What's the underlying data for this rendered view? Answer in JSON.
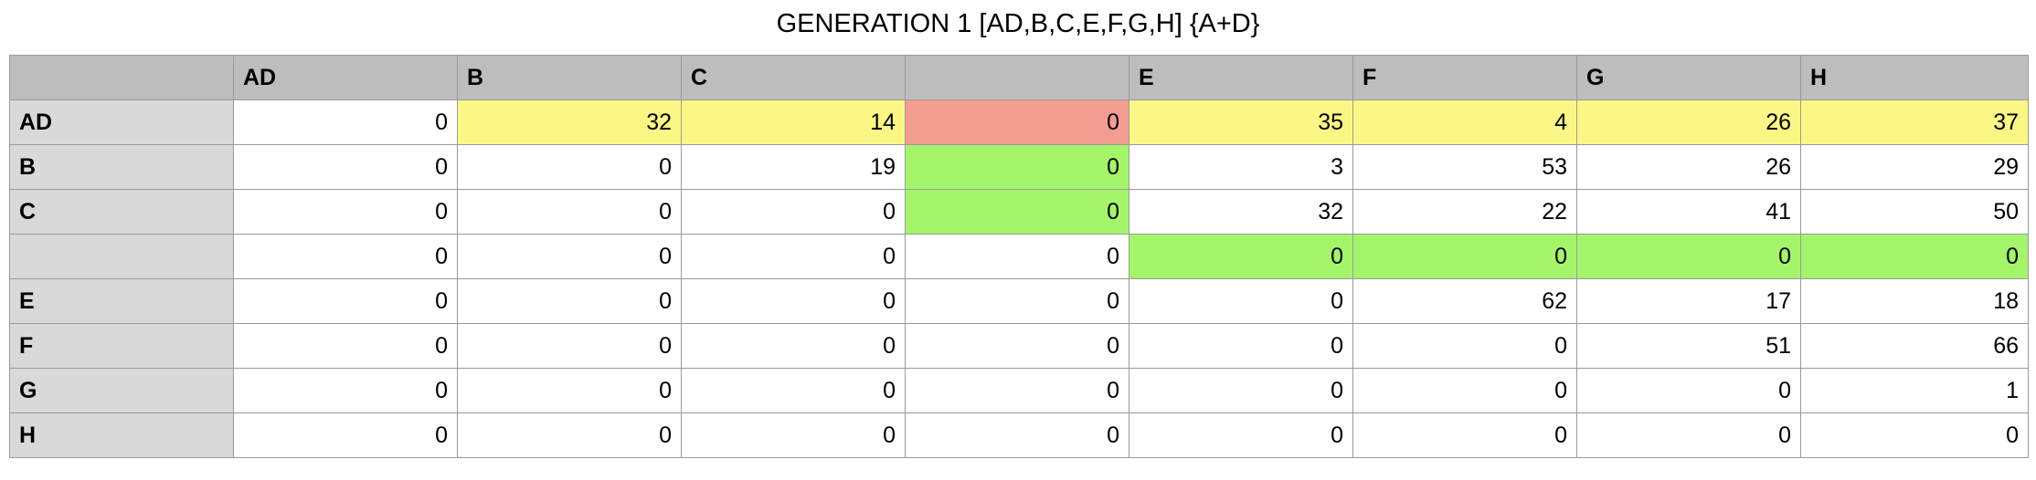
{
  "title": "GENERATION 1 [AD,B,C,E,F,G,H] {A+D}",
  "columns": [
    "AD",
    "B",
    "C",
    "",
    "E",
    "F",
    "G",
    "H"
  ],
  "rows": [
    {
      "label": "AD",
      "values": [
        "0",
        "32",
        "14",
        "0",
        "35",
        "4",
        "26",
        "37"
      ],
      "highlight": [
        "",
        "yellow",
        "yellow",
        "red",
        "yellow",
        "yellow",
        "yellow",
        "yellow"
      ]
    },
    {
      "label": "B",
      "values": [
        "0",
        "0",
        "19",
        "0",
        "3",
        "53",
        "26",
        "29"
      ],
      "highlight": [
        "",
        "",
        "",
        "green",
        "",
        "",
        "",
        ""
      ]
    },
    {
      "label": "C",
      "values": [
        "0",
        "0",
        "0",
        "0",
        "32",
        "22",
        "41",
        "50"
      ],
      "highlight": [
        "",
        "",
        "",
        "green",
        "",
        "",
        "",
        ""
      ]
    },
    {
      "label": "",
      "values": [
        "0",
        "0",
        "0",
        "0",
        "0",
        "0",
        "0",
        "0"
      ],
      "highlight": [
        "",
        "",
        "",
        "",
        "green",
        "green",
        "green",
        "green"
      ]
    },
    {
      "label": "E",
      "values": [
        "0",
        "0",
        "0",
        "0",
        "0",
        "62",
        "17",
        "18"
      ],
      "highlight": [
        "",
        "",
        "",
        "",
        "",
        "",
        "",
        ""
      ]
    },
    {
      "label": "F",
      "values": [
        "0",
        "0",
        "0",
        "0",
        "0",
        "0",
        "51",
        "66"
      ],
      "highlight": [
        "",
        "",
        "",
        "",
        "",
        "",
        "",
        ""
      ]
    },
    {
      "label": "G",
      "values": [
        "0",
        "0",
        "0",
        "0",
        "0",
        "0",
        "0",
        "1"
      ],
      "highlight": [
        "",
        "",
        "",
        "",
        "",
        "",
        "",
        ""
      ]
    },
    {
      "label": "H",
      "values": [
        "0",
        "0",
        "0",
        "0",
        "0",
        "0",
        "0",
        "0"
      ],
      "highlight": [
        "",
        "",
        "",
        "",
        "",
        "",
        "",
        ""
      ]
    }
  ],
  "colors": {
    "yellow": "#fbf784",
    "red": "#f39c90",
    "green": "#a4f56a",
    "header": "#bdbdbd",
    "row_header": "#d9d9d9"
  }
}
